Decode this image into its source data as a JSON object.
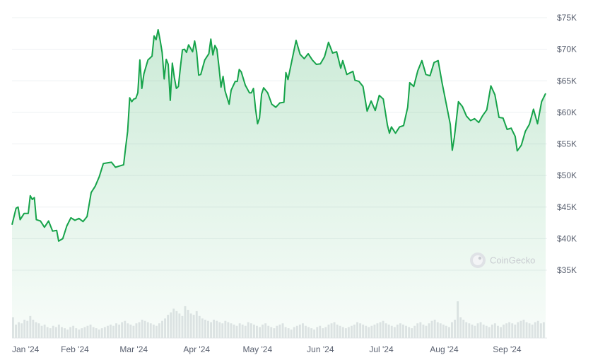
{
  "chart_data": {
    "type": "area",
    "title": "",
    "xlabel": "",
    "ylabel": "",
    "ylim": [
      30000,
      75000
    ],
    "y_ticks": [
      35000,
      40000,
      45000,
      50000,
      55000,
      60000,
      65000,
      70000,
      75000
    ],
    "y_tick_labels": [
      "$35K",
      "$40K",
      "$45K",
      "$50K",
      "$55K",
      "$60K",
      "$65K",
      "$70K",
      "$75K"
    ],
    "x_ticks": [
      "2024-01-01",
      "2024-02-01",
      "2024-03-01",
      "2024-04-01",
      "2024-05-01",
      "2024-06-01",
      "2024-07-01",
      "2024-08-01",
      "2024-09-01"
    ],
    "x_tick_labels": [
      "Jan '24",
      "Feb '24",
      "Mar '24",
      "Apr '24",
      "May '24",
      "Jun '24",
      "Jul '24",
      "Aug '24",
      "Sep '24"
    ],
    "x_range": [
      "2024-01-01",
      "2024-09-20"
    ],
    "grid": true,
    "line_color": "#16a34a",
    "fill_color": "#16a34a",
    "watermark": "CoinGecko",
    "series": [
      {
        "values": [
          [
            "2024-01-01",
            42200
          ],
          [
            "2024-01-03",
            44800
          ],
          [
            "2024-01-04",
            45000
          ],
          [
            "2024-01-05",
            43000
          ],
          [
            "2024-01-07",
            44000
          ],
          [
            "2024-01-09",
            44000
          ],
          [
            "2024-01-10",
            46800
          ],
          [
            "2024-01-11",
            46200
          ],
          [
            "2024-01-12",
            46500
          ],
          [
            "2024-01-13",
            43000
          ],
          [
            "2024-01-15",
            42800
          ],
          [
            "2024-01-17",
            41800
          ],
          [
            "2024-01-19",
            42800
          ],
          [
            "2024-01-21",
            41200
          ],
          [
            "2024-01-23",
            41300
          ],
          [
            "2024-01-24",
            39600
          ],
          [
            "2024-01-26",
            40000
          ],
          [
            "2024-01-28",
            42000
          ],
          [
            "2024-01-30",
            43300
          ],
          [
            "2024-02-01",
            42900
          ],
          [
            "2024-02-03",
            43200
          ],
          [
            "2024-02-05",
            42700
          ],
          [
            "2024-02-07",
            43500
          ],
          [
            "2024-02-09",
            47300
          ],
          [
            "2024-02-11",
            48300
          ],
          [
            "2024-02-13",
            49800
          ],
          [
            "2024-02-15",
            51900
          ],
          [
            "2024-02-17",
            52000
          ],
          [
            "2024-02-19",
            52100
          ],
          [
            "2024-02-21",
            51300
          ],
          [
            "2024-02-23",
            51500
          ],
          [
            "2024-02-25",
            51700
          ],
          [
            "2024-02-26",
            54500
          ],
          [
            "2024-02-27",
            57000
          ],
          [
            "2024-02-28",
            62300
          ],
          [
            "2024-02-29",
            61700
          ],
          [
            "2024-03-01",
            62100
          ],
          [
            "2024-03-02",
            62200
          ],
          [
            "2024-03-03",
            63100
          ],
          [
            "2024-03-04",
            68300
          ],
          [
            "2024-03-05",
            63800
          ],
          [
            "2024-03-06",
            66100
          ],
          [
            "2024-03-08",
            68300
          ],
          [
            "2024-03-10",
            68900
          ],
          [
            "2024-03-11",
            72100
          ],
          [
            "2024-03-12",
            71500
          ],
          [
            "2024-03-13",
            73100
          ],
          [
            "2024-03-14",
            71400
          ],
          [
            "2024-03-15",
            69500
          ],
          [
            "2024-03-16",
            65300
          ],
          [
            "2024-03-17",
            68400
          ],
          [
            "2024-03-18",
            67600
          ],
          [
            "2024-03-19",
            61900
          ],
          [
            "2024-03-20",
            67800
          ],
          [
            "2024-03-21",
            65500
          ],
          [
            "2024-03-22",
            63800
          ],
          [
            "2024-03-23",
            64100
          ],
          [
            "2024-03-24",
            67200
          ],
          [
            "2024-03-25",
            69900
          ],
          [
            "2024-03-26",
            70000
          ],
          [
            "2024-03-27",
            69500
          ],
          [
            "2024-03-28",
            70700
          ],
          [
            "2024-03-30",
            69600
          ],
          [
            "2024-03-31",
            71300
          ],
          [
            "2024-04-01",
            69600
          ],
          [
            "2024-04-02",
            65900
          ],
          [
            "2024-04-03",
            66000
          ],
          [
            "2024-04-05",
            68300
          ],
          [
            "2024-04-07",
            69300
          ],
          [
            "2024-04-08",
            71600
          ],
          [
            "2024-04-09",
            69100
          ],
          [
            "2024-04-10",
            70600
          ],
          [
            "2024-04-11",
            70000
          ],
          [
            "2024-04-12",
            67200
          ],
          [
            "2024-04-13",
            64000
          ],
          [
            "2024-04-14",
            65700
          ],
          [
            "2024-04-15",
            63400
          ],
          [
            "2024-04-17",
            61300
          ],
          [
            "2024-04-18",
            63500
          ],
          [
            "2024-04-20",
            64900
          ],
          [
            "2024-04-21",
            64900
          ],
          [
            "2024-04-22",
            66800
          ],
          [
            "2024-04-23",
            66400
          ],
          [
            "2024-04-25",
            64300
          ],
          [
            "2024-04-27",
            63100
          ],
          [
            "2024-04-28",
            63100
          ],
          [
            "2024-04-29",
            63800
          ],
          [
            "2024-04-30",
            60600
          ],
          [
            "2024-05-01",
            58200
          ],
          [
            "2024-05-02",
            59100
          ],
          [
            "2024-05-03",
            62900
          ],
          [
            "2024-05-04",
            63900
          ],
          [
            "2024-05-06",
            63100
          ],
          [
            "2024-05-08",
            61300
          ],
          [
            "2024-05-10",
            60800
          ],
          [
            "2024-05-12",
            61500
          ],
          [
            "2024-05-14",
            61600
          ],
          [
            "2024-05-15",
            66300
          ],
          [
            "2024-05-16",
            65200
          ],
          [
            "2024-05-20",
            71400
          ],
          [
            "2024-05-22",
            69200
          ],
          [
            "2024-05-24",
            68500
          ],
          [
            "2024-05-26",
            69300
          ],
          [
            "2024-05-28",
            68300
          ],
          [
            "2024-05-30",
            67600
          ],
          [
            "2024-06-01",
            67700
          ],
          [
            "2024-06-03",
            68800
          ],
          [
            "2024-06-05",
            71100
          ],
          [
            "2024-06-07",
            69400
          ],
          [
            "2024-06-09",
            69600
          ],
          [
            "2024-06-11",
            67000
          ],
          [
            "2024-06-12",
            68200
          ],
          [
            "2024-06-14",
            66000
          ],
          [
            "2024-06-17",
            66500
          ],
          [
            "2024-06-18",
            65100
          ],
          [
            "2024-06-20",
            64900
          ],
          [
            "2024-06-22",
            64100
          ],
          [
            "2024-06-24",
            60200
          ],
          [
            "2024-06-26",
            61800
          ],
          [
            "2024-06-28",
            60300
          ],
          [
            "2024-06-30",
            62700
          ],
          [
            "2024-07-02",
            62100
          ],
          [
            "2024-07-04",
            58000
          ],
          [
            "2024-07-05",
            56700
          ],
          [
            "2024-07-06",
            57700
          ],
          [
            "2024-07-08",
            56700
          ],
          [
            "2024-07-10",
            57700
          ],
          [
            "2024-07-12",
            57900
          ],
          [
            "2024-07-14",
            60800
          ],
          [
            "2024-07-15",
            64700
          ],
          [
            "2024-07-17",
            64100
          ],
          [
            "2024-07-19",
            66600
          ],
          [
            "2024-07-21",
            68200
          ],
          [
            "2024-07-23",
            66000
          ],
          [
            "2024-07-25",
            65800
          ],
          [
            "2024-07-27",
            67900
          ],
          [
            "2024-07-29",
            68200
          ],
          [
            "2024-07-31",
            64600
          ],
          [
            "2024-08-02",
            61400
          ],
          [
            "2024-08-04",
            58100
          ],
          [
            "2024-08-05",
            54000
          ],
          [
            "2024-08-06",
            56000
          ],
          [
            "2024-08-08",
            61700
          ],
          [
            "2024-08-10",
            60900
          ],
          [
            "2024-08-12",
            59400
          ],
          [
            "2024-08-14",
            58700
          ],
          [
            "2024-08-16",
            59000
          ],
          [
            "2024-08-18",
            58400
          ],
          [
            "2024-08-20",
            59500
          ],
          [
            "2024-08-22",
            60400
          ],
          [
            "2024-08-24",
            64200
          ],
          [
            "2024-08-26",
            62800
          ],
          [
            "2024-08-28",
            59200
          ],
          [
            "2024-08-30",
            59100
          ],
          [
            "2024-09-01",
            57300
          ],
          [
            "2024-09-03",
            57500
          ],
          [
            "2024-09-05",
            56200
          ],
          [
            "2024-09-06",
            53900
          ],
          [
            "2024-09-08",
            54800
          ],
          [
            "2024-09-10",
            57000
          ],
          [
            "2024-09-12",
            58100
          ],
          [
            "2024-09-14",
            60500
          ],
          [
            "2024-09-16",
            58200
          ],
          [
            "2024-09-18",
            61700
          ],
          [
            "2024-09-20",
            63000
          ]
        ]
      }
    ],
    "volume_values": [
      34,
      22,
      26,
      24,
      30,
      28,
      36,
      30,
      26,
      24,
      20,
      22,
      18,
      16,
      20,
      18,
      22,
      18,
      16,
      14,
      18,
      20,
      16,
      14,
      16,
      18,
      20,
      22,
      18,
      16,
      14,
      16,
      18,
      20,
      22,
      20,
      24,
      22,
      26,
      28,
      24,
      22,
      20,
      24,
      26,
      30,
      28,
      26,
      24,
      22,
      20,
      24,
      28,
      32,
      38,
      42,
      48,
      44,
      40,
      36,
      52,
      46,
      40,
      38,
      44,
      36,
      32,
      30,
      28,
      26,
      30,
      28,
      26,
      24,
      28,
      26,
      24,
      22,
      20,
      24,
      22,
      20,
      26,
      24,
      22,
      20,
      18,
      22,
      24,
      20,
      18,
      16,
      20,
      22,
      24,
      18,
      16,
      14,
      18,
      20,
      22,
      24,
      20,
      18,
      16,
      14,
      18,
      20,
      16,
      18,
      22,
      24,
      26,
      22,
      20,
      18,
      16,
      18,
      20,
      22,
      26,
      24,
      22,
      20,
      18,
      20,
      22,
      24,
      26,
      28,
      24,
      22,
      20,
      18,
      22,
      24,
      22,
      20,
      18,
      16,
      20,
      24,
      26,
      22,
      20,
      24,
      28,
      30,
      26,
      24,
      22,
      20,
      18,
      26,
      30,
      60,
      34,
      30,
      26,
      24,
      22,
      20,
      24,
      26,
      22,
      20,
      18,
      22,
      24,
      20,
      18,
      22,
      24,
      26,
      24,
      22,
      26,
      28,
      30,
      26,
      24,
      22,
      26,
      28,
      24,
      26
    ]
  }
}
